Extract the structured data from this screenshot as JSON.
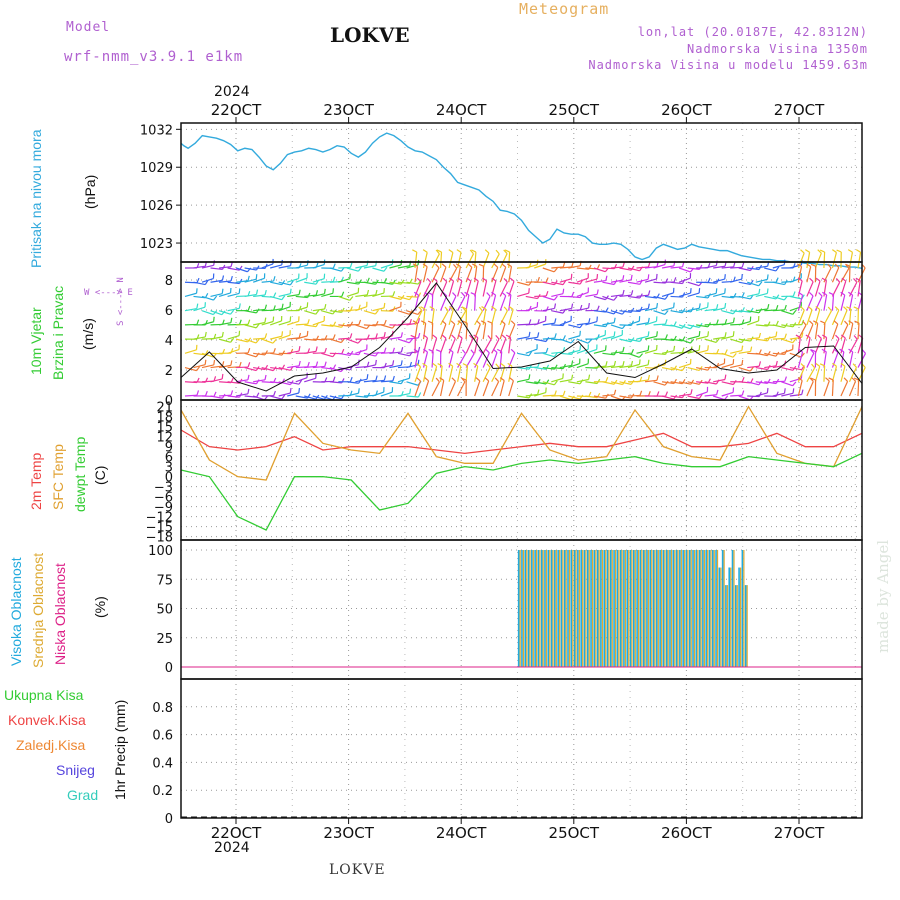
{
  "header": {
    "model_label": "Model",
    "model_name": "wrf-nmm_v3.9.1  e1km",
    "title": "LOKVE",
    "meteogram_label": "Meteogram",
    "coords": "lon,lat (20.0187E, 42.8312N)",
    "elevation": "Nadmorska Visina 1350m",
    "model_elevation": "Nadmorska Visina u modelu 1459.63m",
    "year_top": "2024",
    "year_bottom": "2024",
    "footer": "LOKVE",
    "credit": "made by Angel"
  },
  "colors": {
    "pressure": "#33aadd",
    "temp2m": "#ee4444",
    "sfc_temp": "#e0a030",
    "dewpoint": "#33cc33",
    "high_cloud": "#22aadd",
    "mid_cloud": "#ddaa33",
    "low_cloud": "#dd2288",
    "total_precip": "#33cc33",
    "conv_precip": "#ee4444",
    "frozen_precip": "#ee8833",
    "snow": "#5544dd",
    "hail": "#33ccbb"
  },
  "chart_data": [
    {
      "type": "line",
      "title": "",
      "x_ticks": [
        "22OCT",
        "23OCT",
        "24OCT",
        "25OCT",
        "26OCT",
        "27OCT"
      ],
      "ylabel": "Pritisak na nivou mora",
      "unit": "(hPa)",
      "y_ticks": [
        "1032",
        "1029",
        "1026",
        "1023"
      ],
      "ylim": [
        1021.5,
        1032.5
      ],
      "x": [
        0,
        0.1,
        0.25,
        0.5,
        0.75,
        1.0,
        1.25,
        1.5,
        1.75,
        2.0,
        2.25,
        2.5,
        2.75,
        3.0,
        3.25,
        3.5,
        3.75,
        4.0,
        4.25,
        4.5,
        4.75,
        5.0,
        5.25,
        5.5,
        5.75,
        6.0,
        6.25,
        6.5,
        6.75,
        7.0,
        7.25,
        7.5,
        7.75,
        8.0,
        8.25,
        8.5,
        8.75,
        9.0,
        9.25,
        9.5,
        9.75,
        10.0,
        10.25,
        10.5,
        10.75,
        11.0,
        11.25,
        11.5,
        11.75,
        12.0,
        12.25,
        12.5,
        12.75,
        13.0,
        13.25,
        13.5,
        13.75,
        14.0,
        14.25,
        14.5,
        14.75,
        15.0,
        15.25,
        15.5,
        15.75,
        16.0,
        16.25,
        16.5,
        16.75,
        17.0,
        17.25,
        17.5,
        17.75,
        18.0,
        18.25,
        18.5,
        18.75,
        19.0,
        19.25,
        19.5,
        19.75,
        20.0,
        20.25,
        20.5,
        20.75,
        21.0,
        21.25,
        21.5,
        21.75,
        22.0,
        22.25,
        22.5,
        22.75,
        23.0,
        23.25,
        23.5,
        23.75,
        24.0
      ],
      "series": [
        {
          "values": [
            1030.9,
            1030.7,
            1030.5,
            1030.9,
            1031.5,
            1031.4,
            1031.3,
            1031.1,
            1030.8,
            1030.3,
            1030.5,
            1030.4,
            1029.8,
            1029.1,
            1028.8,
            1029.3,
            1030.0,
            1030.2,
            1030.3,
            1030.5,
            1030.4,
            1030.2,
            1030.4,
            1030.7,
            1030.6,
            1030.1,
            1029.8,
            1030.2,
            1030.9,
            1031.4,
            1031.7,
            1031.5,
            1031.1,
            1030.6,
            1030.3,
            1030.2,
            1029.9,
            1029.6,
            1029.0,
            1028.5,
            1027.8,
            1027.6,
            1027.4,
            1027.2,
            1026.7,
            1026.3,
            1025.6,
            1025.5,
            1025.3,
            1024.8,
            1024.0,
            1023.5,
            1023.0,
            1023.3,
            1024.1,
            1023.8,
            1023.7,
            1023.7,
            1023.5,
            1023.0,
            1022.9,
            1022.9,
            1023.0,
            1022.9,
            1022.5,
            1021.9,
            1021.7,
            1021.9,
            1022.6,
            1022.9,
            1022.7,
            1022.5,
            1022.6,
            1022.9,
            1022.7,
            1022.6,
            1022.5,
            1022.4,
            1022.4,
            1022.2,
            1022.0,
            1021.9,
            1021.8,
            1021.7,
            1021.7,
            1021.6,
            1021.6,
            1021.5,
            1021.5,
            1021.4,
            1021.4,
            1021.3,
            1021.3,
            1021.2,
            1021.2,
            1021.1,
            1021.1,
            1021.0
          ]
        }
      ]
    },
    {
      "type": "scatter",
      "title": "",
      "ylabel_1": "10m Vjetar",
      "ylabel_2": "Brzina i Pravac",
      "unit": "(m/s)",
      "dir_label": "W <---> E",
      "dir_label2": "S <---> N",
      "y_ticks": [
        "8",
        "6",
        "4",
        "2",
        "0"
      ],
      "ylim": [
        0,
        9.2
      ],
      "x": [
        0,
        1,
        2,
        3,
        4,
        5,
        6,
        7,
        8,
        9,
        10,
        11,
        12,
        13,
        14,
        15,
        16,
        17,
        18,
        19,
        20,
        21,
        22,
        23,
        24
      ],
      "series": [
        {
          "values": [
            1.5,
            3.2,
            1.2,
            0.6,
            1.6,
            1.8,
            2.2,
            3.5,
            5.5,
            7.8,
            5.0,
            2.1,
            2.2,
            2.6,
            3.9,
            1.8,
            1.5,
            2.4,
            3.4,
            2.1,
            1.8,
            2.0,
            3.5,
            3.6,
            1.1
          ]
        }
      ]
    },
    {
      "type": "line",
      "title": "",
      "ylabel_1": "2m Temp",
      "ylabel_2": "SFC Temp",
      "ylabel_3": "dewpt Temp",
      "unit": "(C)",
      "y_ticks": [
        "21",
        "18",
        "15",
        "12",
        "9",
        "6",
        "3",
        "0",
        "-3",
        "-6",
        "-9",
        "-12",
        "-15",
        "-18"
      ],
      "ylim": [
        -19,
        23
      ],
      "x": [
        0,
        1,
        2,
        3,
        4,
        5,
        6,
        7,
        8,
        9,
        10,
        11,
        12,
        13,
        14,
        15,
        16,
        17,
        18,
        19,
        20,
        21,
        22,
        23,
        24
      ],
      "series": [
        {
          "name": "2m Temp",
          "values": [
            14,
            9,
            8,
            9,
            12,
            8,
            9,
            9,
            9,
            8,
            7,
            8,
            9,
            10,
            9,
            9,
            11,
            13,
            9,
            9,
            10,
            13,
            9,
            9,
            13
          ]
        },
        {
          "name": "SFC Temp",
          "values": [
            20,
            5,
            0,
            -1,
            19,
            10,
            8,
            7,
            19,
            6,
            4,
            4,
            19,
            8,
            5,
            6,
            20,
            9,
            6,
            5,
            21,
            7,
            4,
            3,
            21
          ]
        },
        {
          "name": "dewpt Temp",
          "values": [
            2,
            0,
            -12,
            -16,
            0,
            0,
            -1,
            -10,
            -8,
            1,
            3,
            2,
            4,
            5,
            4,
            5,
            6,
            4,
            3,
            3,
            6,
            5,
            4,
            3,
            7
          ]
        }
      ]
    },
    {
      "type": "bar",
      "title": "",
      "ylabel_1": "Visoka Oblacnost",
      "ylabel_2": "Srednja Oblacnost",
      "ylabel_3": "Niska Oblacnost",
      "unit": "(%)",
      "y_ticks": [
        "100",
        "75",
        "50",
        "25",
        "0"
      ],
      "ylim": [
        0,
        100
      ],
      "cloud_start": 11.9,
      "cloud_end": 19.9,
      "cloud_value": 100
    },
    {
      "type": "bar",
      "title": "",
      "legend": [
        "Ukupna Kisa",
        "Konvek.Kisa",
        "Zaledj.Kisa",
        "Snijeg",
        "Grad"
      ],
      "ylabel": "1hr Precip (mm)",
      "y_ticks": [
        "0.8",
        "0.6",
        "0.4",
        "0.2",
        "0"
      ],
      "ylim": [
        0,
        1.0
      ],
      "values": [
        0
      ]
    }
  ]
}
